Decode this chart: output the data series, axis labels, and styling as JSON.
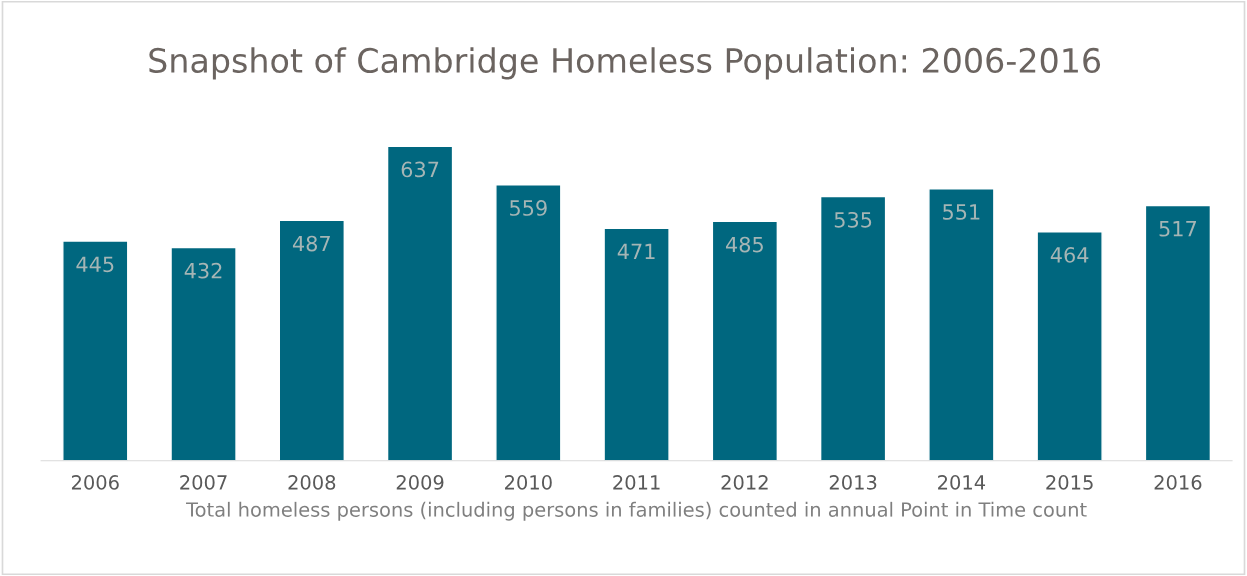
{
  "chart_data": {
    "type": "bar",
    "title": "Snapshot of Cambridge Homeless Population: 2006-2016",
    "xlabel": "Total homeless persons (including persons in families) counted in annual Point in Time count",
    "categories": [
      "2006",
      "2007",
      "2008",
      "2009",
      "2010",
      "2011",
      "2012",
      "2013",
      "2014",
      "2015",
      "2016"
    ],
    "values": [
      445,
      432,
      487,
      637,
      559,
      471,
      485,
      535,
      551,
      464,
      517
    ],
    "color": "#00677f",
    "data_labels": true,
    "grid": false,
    "legend": false
  }
}
